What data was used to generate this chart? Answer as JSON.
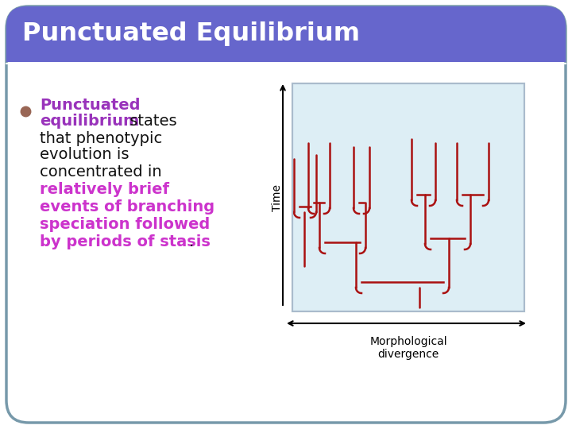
{
  "title": "Punctuated Equilibrium",
  "title_bg_color": "#6666cc",
  "title_text_color": "#ffffff",
  "slide_bg_color": "#ffffff",
  "border_color": "#7799aa",
  "bullet_color": "#996655",
  "text_bold_color": "#9933bb",
  "text_normal_color": "#111111",
  "text_purple_color": "#cc33cc",
  "diagram_bg_color": "#ddeef5",
  "diagram_border_color": "#aabbcc",
  "tree_color": "#aa1111",
  "axis_label_time": "Time",
  "axis_label_morph": "Morphological\ndivergence"
}
